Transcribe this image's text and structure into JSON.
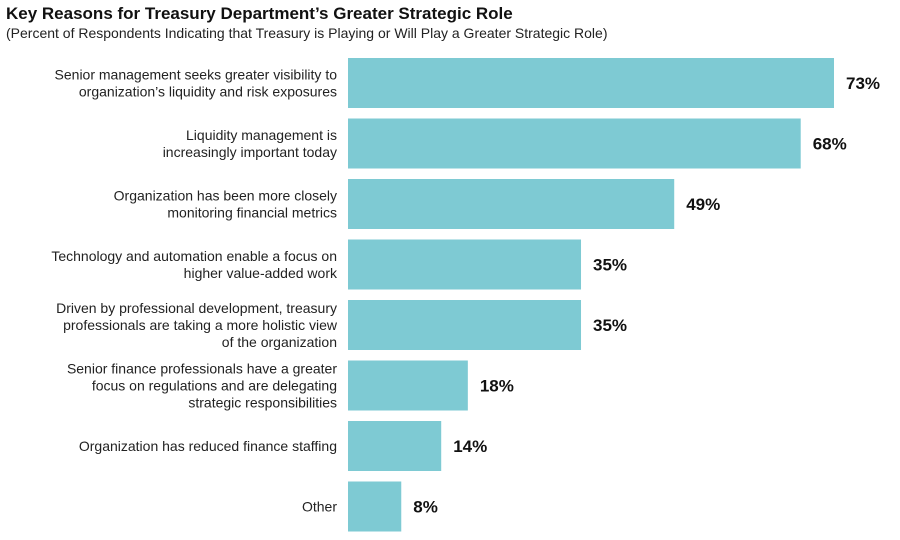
{
  "chart_data": {
    "type": "bar",
    "orientation": "horizontal",
    "title": "Key Reasons for Treasury Department’s Greater Strategic Role",
    "subtitle": "(Percent of Respondents Indicating that Treasury is Playing or Will Play a Greater Strategic Role)",
    "categories": [
      [
        "Senior management seeks greater visibility to",
        "organization’s liquidity and risk exposures"
      ],
      [
        "Liquidity management is",
        "increasingly important today"
      ],
      [
        "Organization has been more closely",
        "monitoring financial metrics"
      ],
      [
        "Technology and automation enable a focus on",
        "higher value-added work"
      ],
      [
        "Driven by professional development, treasury",
        "professionals are taking a more holistic view",
        "of the organization"
      ],
      [
        "Senior finance professionals  have a greater",
        "focus on regulations and are delegating",
        "strategic responsibilities"
      ],
      [
        "Organization has reduced finance staffing"
      ],
      [
        "Other"
      ]
    ],
    "values": [
      73,
      68,
      49,
      35,
      35,
      18,
      14,
      8
    ],
    "value_labels": [
      "73%",
      "68%",
      "49%",
      "35%",
      "35%",
      "18%",
      "14%",
      "8%"
    ],
    "xlim": [
      0,
      73
    ],
    "grid": false,
    "legend": "none",
    "bar_color": "#7ecad3"
  }
}
